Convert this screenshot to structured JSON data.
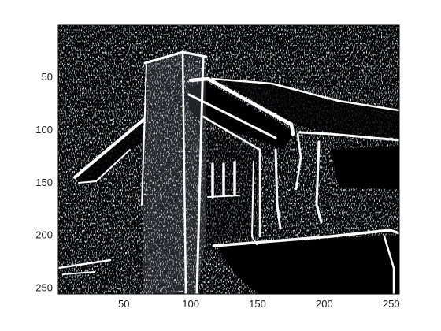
{
  "figure": {
    "background": "#ffffff",
    "image_background": "#050505",
    "edge_color": "#ffffff",
    "speckle_color": "#b8c0d8",
    "axis_color": "#000000",
    "description_subject": "edge-detected building facade with chimney and roof eaves"
  },
  "chart_data": {
    "type": "image",
    "xlim": [
      1,
      256
    ],
    "ylim": [
      1,
      256
    ],
    "y_direction": "reverse",
    "x_ticks": [
      50,
      100,
      150,
      200,
      250
    ],
    "y_ticks": [
      50,
      100,
      150,
      200,
      250
    ],
    "x_tick_labels": [
      "50",
      "100",
      "150",
      "200",
      "250"
    ],
    "y_tick_labels": [
      "50",
      "100",
      "150",
      "200",
      "250"
    ],
    "title": "",
    "xlabel": "",
    "ylabel": ""
  }
}
